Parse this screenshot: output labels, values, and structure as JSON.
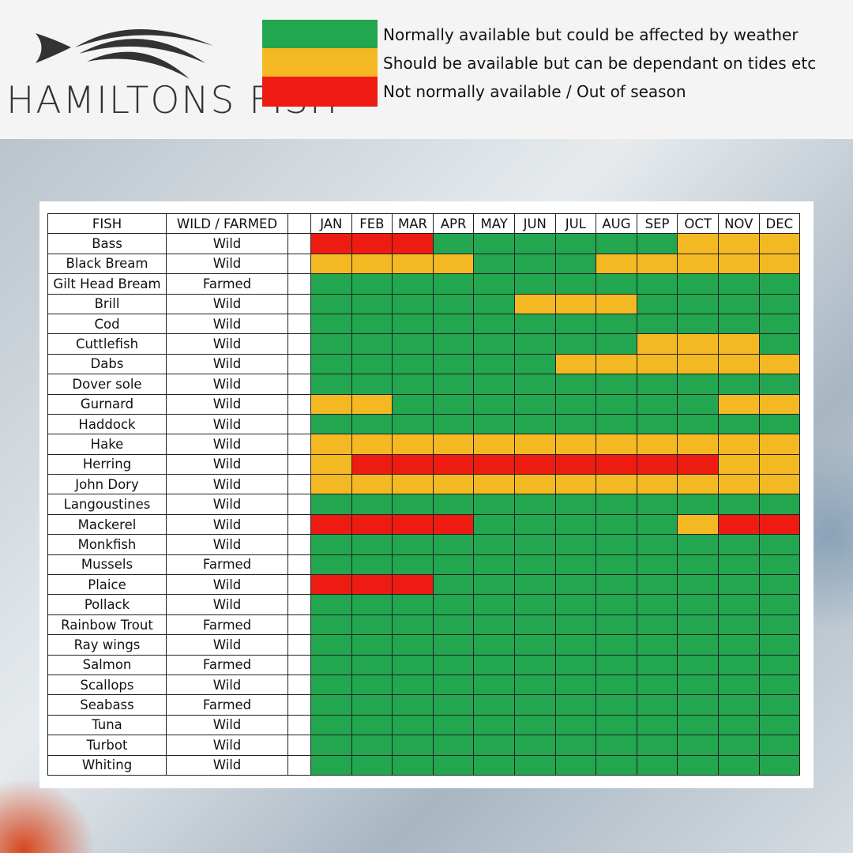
{
  "header": {
    "logo": "HAMILTONS FISH"
  },
  "legend": [
    {
      "label": "Normally available but could be affected by weather",
      "color": "#22a650"
    },
    {
      "label": "Should be available but can be dependant on tides etc",
      "color": "#f4b823"
    },
    {
      "label": "Not normally available / Out of season",
      "color": "#ee1b13"
    }
  ],
  "table": {
    "columns": [
      "FISH",
      "WILD / FARMED",
      "JAN",
      "FEB",
      "MAR",
      "APR",
      "MAY",
      "JUN",
      "JUL",
      "AUG",
      "SEP",
      "OCT",
      "NOV",
      "DEC"
    ],
    "rows": [
      {
        "fish": "Bass",
        "source": "Wild",
        "months": [
          "#ee1b13",
          "#ee1b13",
          "#ee1b13",
          "#22a650",
          "#22a650",
          "#22a650",
          "#22a650",
          "#22a650",
          "#22a650",
          "#f4b823",
          "#f4b823",
          "#f4b823"
        ]
      },
      {
        "fish": "Black Bream",
        "source": "Wild",
        "months": [
          "#f4b823",
          "#f4b823",
          "#f4b823",
          "#f4b823",
          "#22a650",
          "#22a650",
          "#22a650",
          "#f4b823",
          "#f4b823",
          "#f4b823",
          "#f4b823",
          "#f4b823"
        ]
      },
      {
        "fish": "Gilt Head Bream",
        "source": "Farmed",
        "months": [
          "#22a650",
          "#22a650",
          "#22a650",
          "#22a650",
          "#22a650",
          "#22a650",
          "#22a650",
          "#22a650",
          "#22a650",
          "#22a650",
          "#22a650",
          "#22a650"
        ]
      },
      {
        "fish": "Brill",
        "source": "Wild",
        "months": [
          "#22a650",
          "#22a650",
          "#22a650",
          "#22a650",
          "#22a650",
          "#f4b823",
          "#f4b823",
          "#f4b823",
          "#22a650",
          "#22a650",
          "#22a650",
          "#22a650"
        ]
      },
      {
        "fish": "Cod",
        "source": "Wild",
        "months": [
          "#22a650",
          "#22a650",
          "#22a650",
          "#22a650",
          "#22a650",
          "#22a650",
          "#22a650",
          "#22a650",
          "#22a650",
          "#22a650",
          "#22a650",
          "#22a650"
        ]
      },
      {
        "fish": "Cuttlefish",
        "source": "Wild",
        "months": [
          "#22a650",
          "#22a650",
          "#22a650",
          "#22a650",
          "#22a650",
          "#22a650",
          "#22a650",
          "#22a650",
          "#f4b823",
          "#f4b823",
          "#f4b823",
          "#22a650"
        ]
      },
      {
        "fish": "Dabs",
        "source": "Wild",
        "months": [
          "#22a650",
          "#22a650",
          "#22a650",
          "#22a650",
          "#22a650",
          "#22a650",
          "#f4b823",
          "#f4b823",
          "#f4b823",
          "#f4b823",
          "#f4b823",
          "#f4b823"
        ]
      },
      {
        "fish": "Dover sole",
        "source": "Wild",
        "months": [
          "#22a650",
          "#22a650",
          "#22a650",
          "#22a650",
          "#22a650",
          "#22a650",
          "#22a650",
          "#22a650",
          "#22a650",
          "#22a650",
          "#22a650",
          "#22a650"
        ]
      },
      {
        "fish": "Gurnard",
        "source": "Wild",
        "months": [
          "#f4b823",
          "#f4b823",
          "#22a650",
          "#22a650",
          "#22a650",
          "#22a650",
          "#22a650",
          "#22a650",
          "#22a650",
          "#22a650",
          "#f4b823",
          "#f4b823"
        ]
      },
      {
        "fish": "Haddock",
        "source": "Wild",
        "months": [
          "#22a650",
          "#22a650",
          "#22a650",
          "#22a650",
          "#22a650",
          "#22a650",
          "#22a650",
          "#22a650",
          "#22a650",
          "#22a650",
          "#22a650",
          "#22a650"
        ]
      },
      {
        "fish": "Hake",
        "source": "Wild",
        "months": [
          "#f4b823",
          "#f4b823",
          "#f4b823",
          "#f4b823",
          "#f4b823",
          "#f4b823",
          "#f4b823",
          "#f4b823",
          "#f4b823",
          "#f4b823",
          "#f4b823",
          "#f4b823"
        ]
      },
      {
        "fish": "Herring",
        "source": "Wild",
        "months": [
          "#f4b823",
          "#ee1b13",
          "#ee1b13",
          "#ee1b13",
          "#ee1b13",
          "#ee1b13",
          "#ee1b13",
          "#ee1b13",
          "#ee1b13",
          "#ee1b13",
          "#f4b823",
          "#f4b823"
        ]
      },
      {
        "fish": "John Dory",
        "source": "Wild",
        "months": [
          "#f4b823",
          "#f4b823",
          "#f4b823",
          "#f4b823",
          "#f4b823",
          "#f4b823",
          "#f4b823",
          "#f4b823",
          "#f4b823",
          "#f4b823",
          "#f4b823",
          "#f4b823"
        ]
      },
      {
        "fish": "Langoustines",
        "source": "Wild",
        "months": [
          "#22a650",
          "#22a650",
          "#22a650",
          "#22a650",
          "#22a650",
          "#22a650",
          "#22a650",
          "#22a650",
          "#22a650",
          "#22a650",
          "#22a650",
          "#22a650"
        ]
      },
      {
        "fish": "Mackerel",
        "source": "Wild",
        "months": [
          "#ee1b13",
          "#ee1b13",
          "#ee1b13",
          "#ee1b13",
          "#22a650",
          "#22a650",
          "#22a650",
          "#22a650",
          "#22a650",
          "#f4b823",
          "#ee1b13",
          "#ee1b13"
        ]
      },
      {
        "fish": "Monkfish",
        "source": "Wild",
        "months": [
          "#22a650",
          "#22a650",
          "#22a650",
          "#22a650",
          "#22a650",
          "#22a650",
          "#22a650",
          "#22a650",
          "#22a650",
          "#22a650",
          "#22a650",
          "#22a650"
        ]
      },
      {
        "fish": "Mussels",
        "source": "Farmed",
        "months": [
          "#22a650",
          "#22a650",
          "#22a650",
          "#22a650",
          "#22a650",
          "#22a650",
          "#22a650",
          "#22a650",
          "#22a650",
          "#22a650",
          "#22a650",
          "#22a650"
        ]
      },
      {
        "fish": "Plaice",
        "source": "Wild",
        "months": [
          "#ee1b13",
          "#ee1b13",
          "#ee1b13",
          "#22a650",
          "#22a650",
          "#22a650",
          "#22a650",
          "#22a650",
          "#22a650",
          "#22a650",
          "#22a650",
          "#22a650"
        ]
      },
      {
        "fish": "Pollack",
        "source": "Wild",
        "months": [
          "#22a650",
          "#22a650",
          "#22a650",
          "#22a650",
          "#22a650",
          "#22a650",
          "#22a650",
          "#22a650",
          "#22a650",
          "#22a650",
          "#22a650",
          "#22a650"
        ]
      },
      {
        "fish": "Rainbow Trout",
        "source": "Farmed",
        "months": [
          "#22a650",
          "#22a650",
          "#22a650",
          "#22a650",
          "#22a650",
          "#22a650",
          "#22a650",
          "#22a650",
          "#22a650",
          "#22a650",
          "#22a650",
          "#22a650"
        ]
      },
      {
        "fish": "Ray wings",
        "source": "Wild",
        "months": [
          "#22a650",
          "#22a650",
          "#22a650",
          "#22a650",
          "#22a650",
          "#22a650",
          "#22a650",
          "#22a650",
          "#22a650",
          "#22a650",
          "#22a650",
          "#22a650"
        ]
      },
      {
        "fish": "Salmon",
        "source": "Farmed",
        "months": [
          "#22a650",
          "#22a650",
          "#22a650",
          "#22a650",
          "#22a650",
          "#22a650",
          "#22a650",
          "#22a650",
          "#22a650",
          "#22a650",
          "#22a650",
          "#22a650"
        ]
      },
      {
        "fish": "Scallops",
        "source": "Wild",
        "months": [
          "#22a650",
          "#22a650",
          "#22a650",
          "#22a650",
          "#22a650",
          "#22a650",
          "#22a650",
          "#22a650",
          "#22a650",
          "#22a650",
          "#22a650",
          "#22a650"
        ]
      },
      {
        "fish": "Seabass",
        "source": "Farmed",
        "months": [
          "#22a650",
          "#22a650",
          "#22a650",
          "#22a650",
          "#22a650",
          "#22a650",
          "#22a650",
          "#22a650",
          "#22a650",
          "#22a650",
          "#22a650",
          "#22a650"
        ]
      },
      {
        "fish": "Tuna",
        "source": "Wild",
        "months": [
          "#22a650",
          "#22a650",
          "#22a650",
          "#22a650",
          "#22a650",
          "#22a650",
          "#22a650",
          "#22a650",
          "#22a650",
          "#22a650",
          "#22a650",
          "#22a650"
        ]
      },
      {
        "fish": "Turbot",
        "source": "Wild",
        "months": [
          "#22a650",
          "#22a650",
          "#22a650",
          "#22a650",
          "#22a650",
          "#22a650",
          "#22a650",
          "#22a650",
          "#22a650",
          "#22a650",
          "#22a650",
          "#22a650"
        ]
      },
      {
        "fish": "Whiting",
        "source": "Wild",
        "months": [
          "#22a650",
          "#22a650",
          "#22a650",
          "#22a650",
          "#22a650",
          "#22a650",
          "#22a650",
          "#22a650",
          "#22a650",
          "#22a650",
          "#22a650",
          "#22a650"
        ]
      }
    ]
  }
}
